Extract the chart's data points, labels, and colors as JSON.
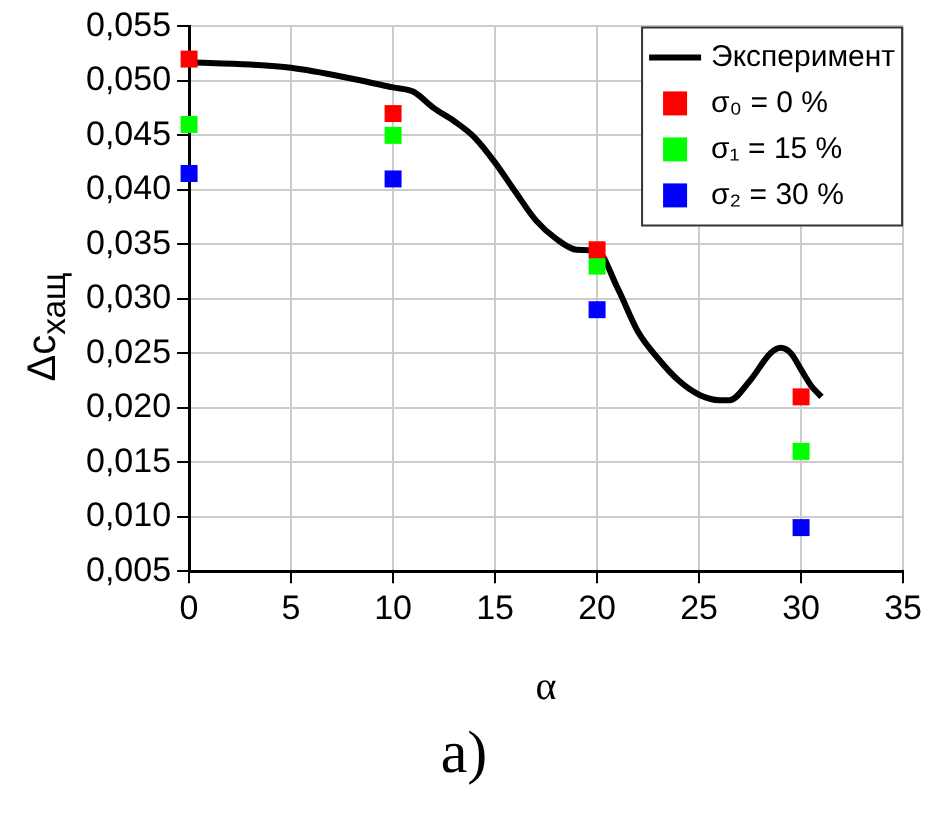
{
  "chart_data": {
    "type": "scatter",
    "xlabel": "α",
    "ylabel": "Δc$_{хащ}$",
    "annotations": [
      "a)"
    ],
    "xlim": [
      0,
      35
    ],
    "xticks": [
      0,
      5,
      10,
      15,
      20,
      25,
      30,
      35
    ],
    "ylim": [
      0.005,
      0.055
    ],
    "yticks": [
      {
        "value": 0.005,
        "label": "0,005"
      },
      {
        "value": 0.01,
        "label": "0,010"
      },
      {
        "value": 0.015,
        "label": "0,015"
      },
      {
        "value": 0.02,
        "label": "0,020"
      },
      {
        "value": 0.025,
        "label": "0,025"
      },
      {
        "value": 0.03,
        "label": "0,030"
      },
      {
        "value": 0.035,
        "label": "0,035"
      },
      {
        "value": 0.04,
        "label": "0,040"
      },
      {
        "value": 0.045,
        "label": "0,045"
      },
      {
        "value": 0.05,
        "label": "0,050"
      },
      {
        "value": 0.055,
        "label": "0,055"
      }
    ],
    "grid": true,
    "legend": "top right",
    "marker": "square",
    "series": [
      {
        "name": "Эксперимент",
        "type": "line",
        "marker": "none",
        "line_style": "solid",
        "color": "#000000",
        "x": [
          0,
          3,
          5,
          8,
          10,
          11,
          12,
          13,
          14,
          15,
          16,
          17,
          18,
          19,
          20,
          21,
          22,
          23,
          24,
          25,
          26,
          26.5,
          27.5,
          28.5,
          29,
          29.5,
          30,
          30.5,
          31
        ],
        "values": [
          0.0517,
          0.0515,
          0.0512,
          0.0502,
          0.0494,
          0.049,
          0.0475,
          0.0463,
          0.0448,
          0.0425,
          0.0398,
          0.0372,
          0.0355,
          0.0345,
          0.0344,
          0.031,
          0.027,
          0.0245,
          0.0225,
          0.0212,
          0.0207,
          0.0207,
          0.0225,
          0.025,
          0.0255,
          0.025,
          0.0235,
          0.022,
          0.021
        ]
      },
      {
        "name": "σ₀ = 0 %",
        "color": "#ff0000",
        "x": [
          0,
          10,
          20,
          30
        ],
        "values": [
          0.052,
          0.047,
          0.0345,
          0.021
        ]
      },
      {
        "name": "σ₁ = 15 %",
        "color": "#00ff00",
        "x": [
          0,
          10,
          20,
          30
        ],
        "values": [
          0.046,
          0.045,
          0.033,
          0.016
        ]
      },
      {
        "name": "σ₂ = 30 %",
        "color": "#0000ff",
        "x": [
          0,
          10,
          20,
          30
        ],
        "values": [
          0.0415,
          0.041,
          0.029,
          0.009
        ]
      }
    ]
  }
}
